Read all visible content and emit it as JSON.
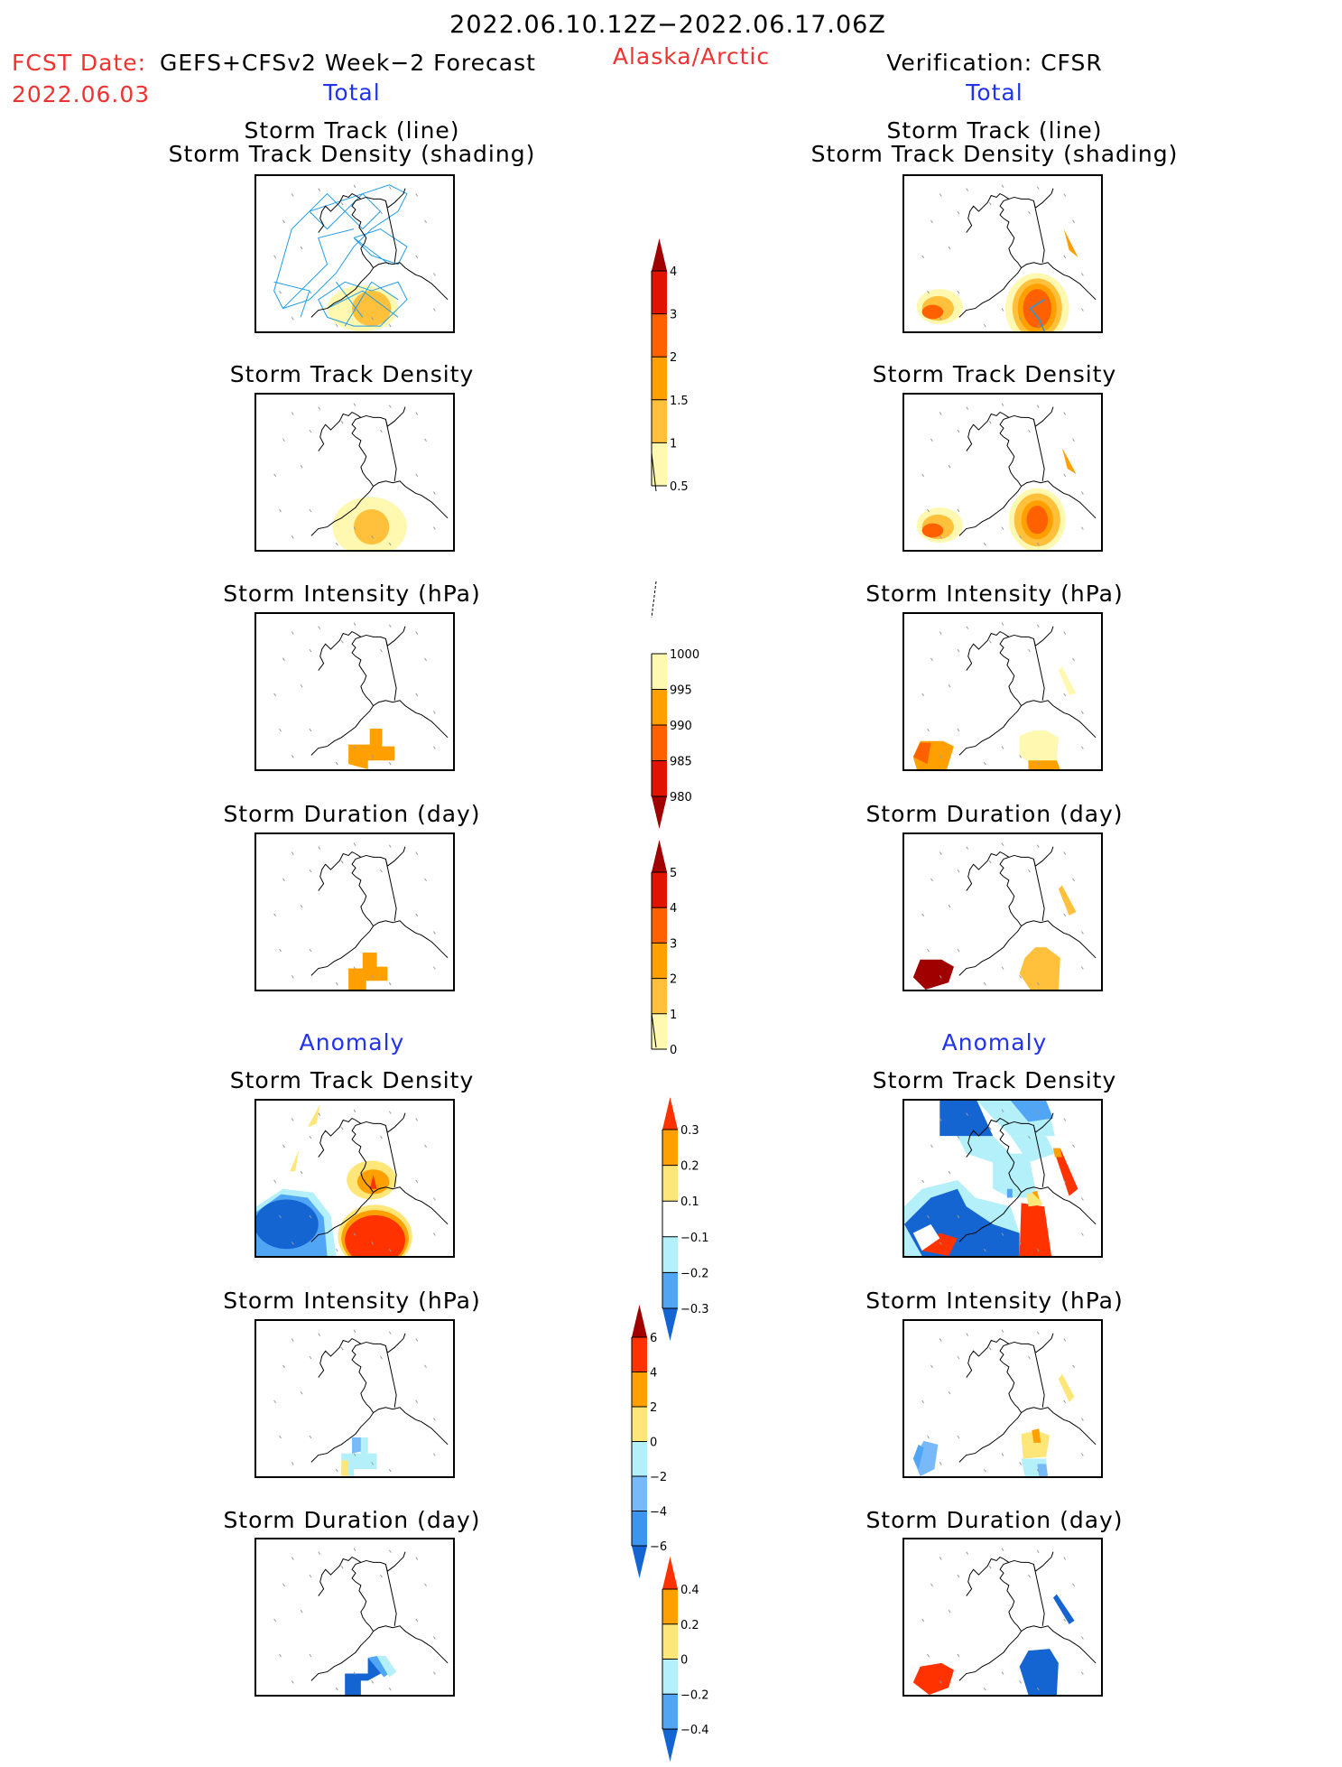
{
  "header": {
    "period": "2022.06.10.12Z−2022.06.17.06Z",
    "fcst_date_label": "FCST Date:",
    "fcst_date_value": "2022.06.03",
    "forecast_name": "GEFS+CFSv2 Week−2 Forecast",
    "region": "Alaska/Arctic",
    "verification": "Verification: CFSR"
  },
  "sections": {
    "total_left": "Total",
    "total_right": "Total",
    "anomaly_left": "Anomaly",
    "anomaly_right": "Anomaly"
  },
  "panel_titles": {
    "track_line_1": "Storm Track (line)",
    "track_line_2": "Storm Track Density (shading)",
    "density": "Storm Track Density",
    "intensity": "Storm Intensity (hPa)",
    "duration": "Storm Duration (day)"
  },
  "colors": {
    "title_red": "#ee3333",
    "section_blue": "#2233ee",
    "track_line": "#1e9be6"
  },
  "chart_data": [
    {
      "type": "heatmap",
      "title": "Storm Track Density colorbar (Total)",
      "levels": [
        0.5,
        1,
        1.5,
        2,
        3,
        4
      ],
      "tick_labels": [
        "0.5",
        "1",
        "1.5",
        "2",
        "3",
        "4"
      ],
      "colors": [
        "#fff8b0",
        "#ffc03c",
        "#ffa000",
        "#ff6000",
        "#e01400",
        "#a00000"
      ]
    },
    {
      "type": "heatmap",
      "title": "Storm Intensity colorbar (Total, hPa)",
      "levels": [
        1000,
        995,
        990,
        985,
        980
      ],
      "tick_labels": [
        "1000",
        "995",
        "990",
        "985",
        "980"
      ],
      "colors": [
        "#fff8b0",
        "#ffa000",
        "#ff6000",
        "#e01400",
        "#a00000"
      ]
    },
    {
      "type": "heatmap",
      "title": "Storm Duration colorbar (Total, day)",
      "levels": [
        0,
        1,
        2,
        3,
        4,
        5
      ],
      "tick_labels": [
        "0",
        "1",
        "2",
        "3",
        "4",
        "5"
      ],
      "colors": [
        "#fff8b0",
        "#ffc03c",
        "#ffa000",
        "#ff6000",
        "#e01400",
        "#a00000"
      ]
    },
    {
      "type": "heatmap",
      "title": "Storm Track Density anomaly colorbar",
      "levels": [
        -0.3,
        -0.2,
        -0.1,
        0.1,
        0.2,
        0.3
      ],
      "tick_labels": [
        "−0.3",
        "−0.2",
        "−0.1",
        "0.1",
        "0.2",
        "0.3"
      ],
      "colors": [
        "#1464d2",
        "#50a5f5",
        "#b4f0fa",
        "#ffffff",
        "#ffe678",
        "#ffa000",
        "#ff3200"
      ]
    },
    {
      "type": "heatmap",
      "title": "Storm Intensity anomaly colorbar (hPa)",
      "levels": [
        -6,
        -4,
        -2,
        0,
        2,
        4,
        6
      ],
      "tick_labels": [
        "−6",
        "−4",
        "−2",
        "0",
        "2",
        "4",
        "6"
      ],
      "colors": [
        "#1464d2",
        "#3c96f0",
        "#78b9fa",
        "#b4f0fa",
        "#ffe678",
        "#ffa000",
        "#ff3200",
        "#a00000"
      ]
    },
    {
      "type": "heatmap",
      "title": "Storm Duration anomaly colorbar (day)",
      "levels": [
        -0.4,
        -0.2,
        0,
        0.2,
        0.4
      ],
      "tick_labels": [
        "−0.4",
        "−0.2",
        "0",
        "0.2",
        "0.4"
      ],
      "colors": [
        "#1464d2",
        "#50a5f5",
        "#b4f0fa",
        "#ffe678",
        "#ffa000",
        "#ff3200"
      ]
    }
  ]
}
